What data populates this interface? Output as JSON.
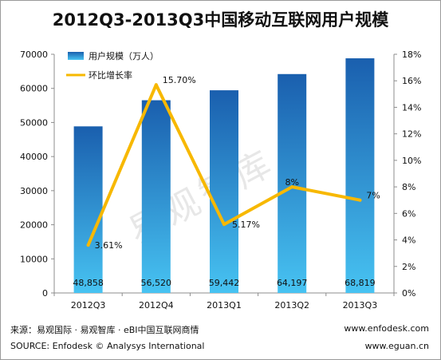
{
  "title": "2012Q3-2013Q3中国移动互联网用户规模",
  "watermark": "易观智库",
  "chart_data": {
    "type": "bar+line",
    "categories": [
      "2012Q3",
      "2012Q4",
      "2013Q1",
      "2013Q2",
      "2013Q3"
    ],
    "series": [
      {
        "name": "用户规模（万人）",
        "type": "bar",
        "values": [
          48858,
          56520,
          59442,
          64197,
          68819
        ],
        "labels": [
          "48,858",
          "56,520",
          "59,442",
          "64,197",
          "68,819"
        ]
      },
      {
        "name": "环比增长率",
        "type": "line",
        "values": [
          3.61,
          15.7,
          5.17,
          8,
          7
        ],
        "labels": [
          "3.61%",
          "15.70%",
          "5.17%",
          "8%",
          "7%"
        ]
      }
    ],
    "y_left": {
      "min": 0,
      "max": 70000,
      "ticks": [
        "0",
        "10000",
        "20000",
        "30000",
        "40000",
        "50000",
        "60000",
        "70000"
      ]
    },
    "y_right": {
      "min": 0,
      "max": 18,
      "ticks": [
        "0%",
        "2%",
        "4%",
        "6%",
        "8%",
        "10%",
        "12%",
        "14%",
        "16%",
        "18%"
      ]
    },
    "colors": {
      "bar_top": "#1a5fae",
      "bar_bottom": "#47c3f2",
      "line": "#f7b800"
    },
    "legend_position": "top-left"
  },
  "footer": {
    "source_cn": "来源：易观国际 · 易观智库 · eBI中国互联网商情",
    "source_en": "SOURCE: Enfodesk © Analysys International",
    "site1": "www.enfodesk.com",
    "site2": "www.eguan.cn"
  }
}
